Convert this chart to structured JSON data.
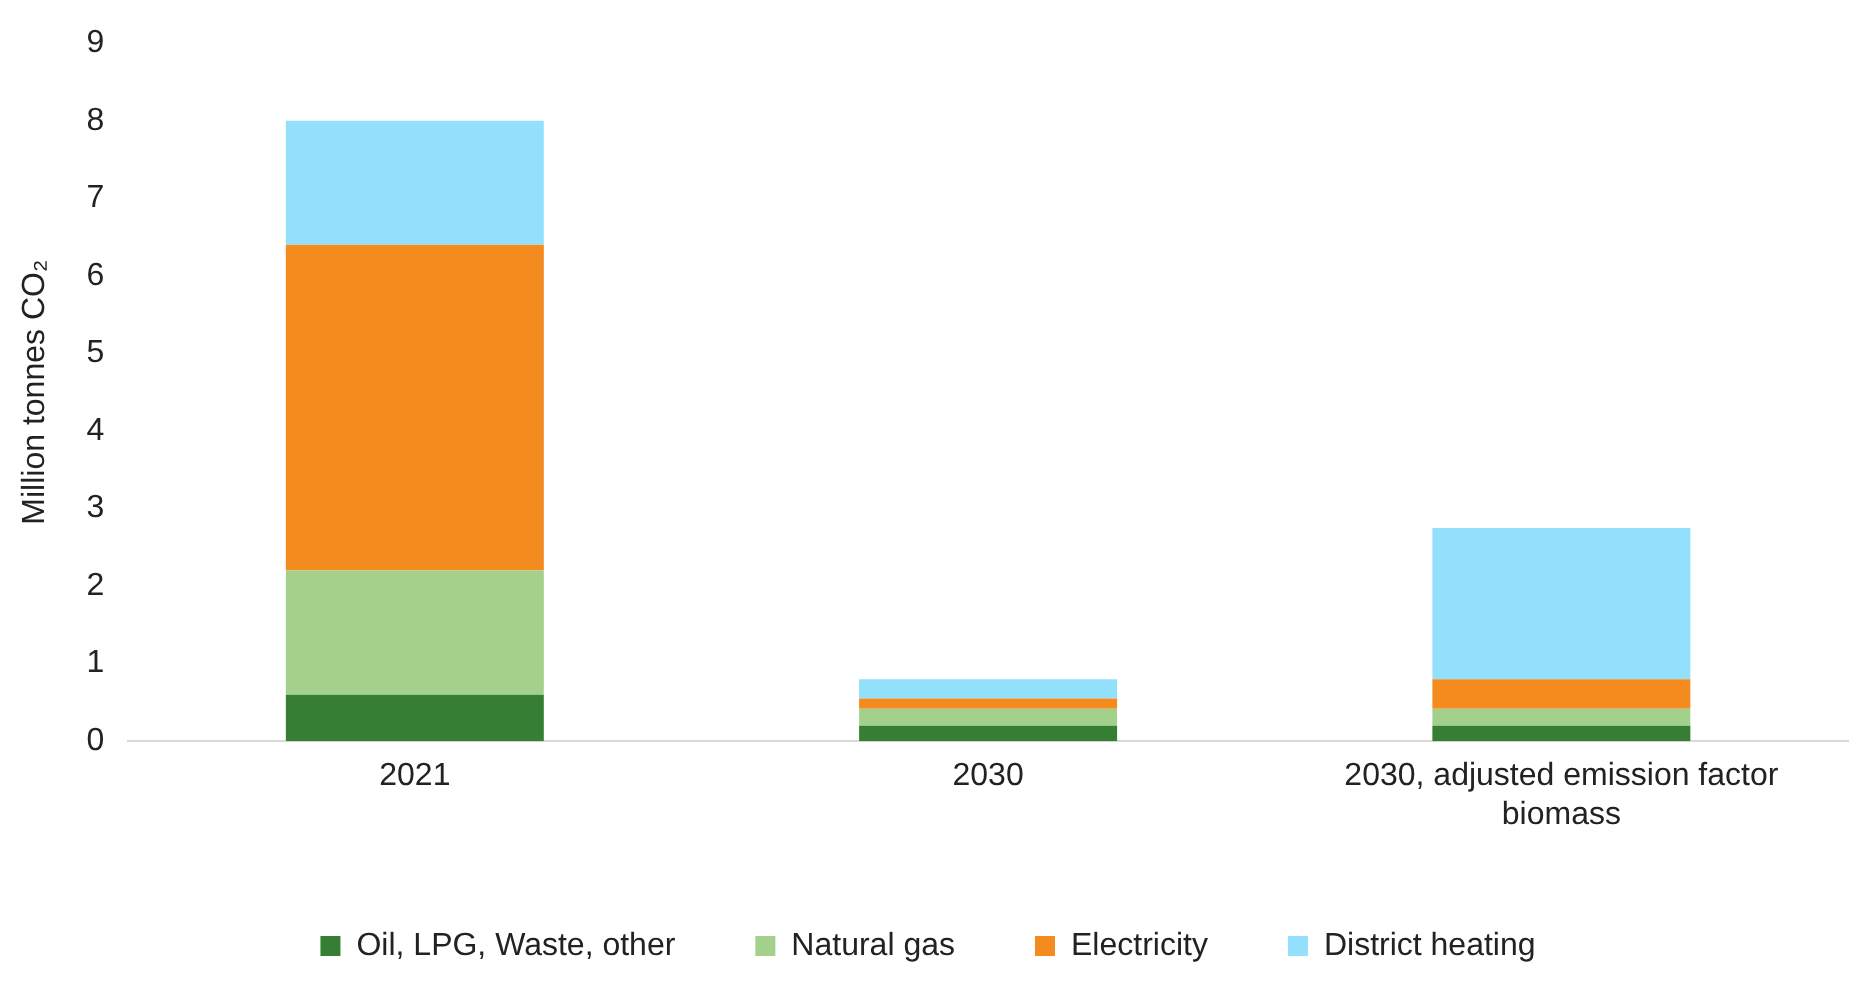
{
  "chart_data": {
    "type": "bar",
    "stacked": true,
    "ylabel": "Million tonnes CO₂",
    "categories": [
      "2021",
      "2030",
      "2030, adjusted emission factor biomass"
    ],
    "series": [
      {
        "name": "Oil, LPG, Waste, other",
        "color": "#367e34",
        "values": [
          0.6,
          0.2,
          0.2
        ]
      },
      {
        "name": "Natural gas",
        "color": "#a3d18c",
        "values": [
          1.6,
          0.22,
          0.22
        ]
      },
      {
        "name": "Electricity",
        "color": "#f48b1f",
        "values": [
          4.2,
          0.13,
          0.38
        ]
      },
      {
        "name": "District heating",
        "color": "#93e0fd",
        "values": [
          1.6,
          0.25,
          1.95
        ]
      }
    ],
    "ylim": [
      0,
      9
    ],
    "yticks": [
      0,
      1,
      2,
      3,
      4,
      5,
      6,
      7,
      8,
      9
    ],
    "grid": false,
    "legend": "bottom"
  }
}
